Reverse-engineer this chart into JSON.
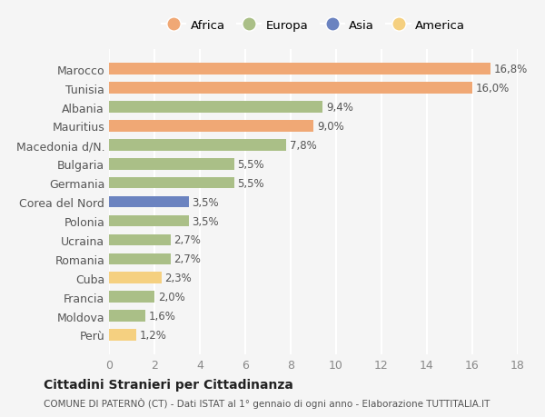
{
  "categories": [
    "Marocco",
    "Tunisia",
    "Albania",
    "Mauritius",
    "Macedonia d/N.",
    "Bulgaria",
    "Germania",
    "Corea del Nord",
    "Polonia",
    "Ucraina",
    "Romania",
    "Cuba",
    "Francia",
    "Moldova",
    "Perù"
  ],
  "values": [
    16.8,
    16.0,
    9.4,
    9.0,
    7.8,
    5.5,
    5.5,
    3.5,
    3.5,
    2.7,
    2.7,
    2.3,
    2.0,
    1.6,
    1.2
  ],
  "continents": [
    "Africa",
    "Africa",
    "Europa",
    "Africa",
    "Europa",
    "Europa",
    "Europa",
    "Asia",
    "Europa",
    "Europa",
    "Europa",
    "America",
    "Europa",
    "Europa",
    "America"
  ],
  "colors": {
    "Africa": "#F0A875",
    "Europa": "#AABF87",
    "Asia": "#6B83C0",
    "America": "#F5D080"
  },
  "legend_order": [
    "Africa",
    "Europa",
    "Asia",
    "America"
  ],
  "xlim": [
    0,
    18
  ],
  "xticks": [
    0,
    2,
    4,
    6,
    8,
    10,
    12,
    14,
    16,
    18
  ],
  "title": "Cittadini Stranieri per Cittadinanza",
  "subtitle": "COMUNE DI PATERNÒ (CT) - Dati ISTAT al 1° gennaio di ogni anno - Elaborazione TUTTITALIA.IT",
  "bg_color": "#f5f5f5",
  "bar_height": 0.6,
  "grid_color": "#ffffff"
}
